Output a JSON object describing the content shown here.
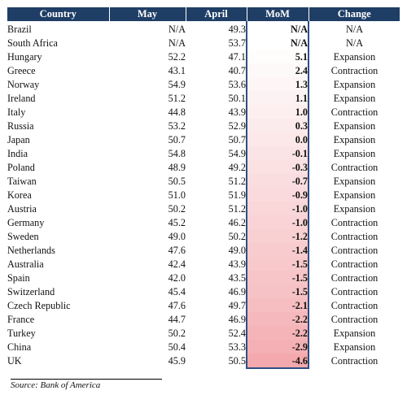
{
  "table": {
    "headers": [
      "Country",
      "May",
      "April",
      "MoM",
      "Change"
    ],
    "rows": [
      {
        "country": "Brazil",
        "may": "N/A",
        "april": "49.3",
        "mom": "N/A",
        "change": "N/A",
        "tint": 0.0
      },
      {
        "country": "South Africa",
        "may": "N/A",
        "april": "53.7",
        "mom": "N/A",
        "change": "N/A",
        "tint": 0.0
      },
      {
        "country": "Hungary",
        "may": "52.2",
        "april": "47.1",
        "mom": "5.1",
        "change": "Expansion",
        "tint": 0.04
      },
      {
        "country": "Greece",
        "may": "43.1",
        "april": "40.7",
        "mom": "2.4",
        "change": "Contraction",
        "tint": 0.07
      },
      {
        "country": "Norway",
        "may": "54.9",
        "april": "53.6",
        "mom": "1.3",
        "change": "Expansion",
        "tint": 0.11
      },
      {
        "country": "Ireland",
        "may": "51.2",
        "april": "50.1",
        "mom": "1.1",
        "change": "Expansion",
        "tint": 0.15
      },
      {
        "country": "Italy",
        "may": "44.8",
        "april": "43.9",
        "mom": "1.0",
        "change": "Contraction",
        "tint": 0.19
      },
      {
        "country": "Russia",
        "may": "53.2",
        "april": "52.9",
        "mom": "0.3",
        "change": "Expansion",
        "tint": 0.23
      },
      {
        "country": "Japan",
        "may": "50.7",
        "april": "50.7",
        "mom": "0.0",
        "change": "Expansion",
        "tint": 0.27
      },
      {
        "country": "India",
        "may": "54.8",
        "april": "54.9",
        "mom": "-0.1",
        "change": "Expansion",
        "tint": 0.31
      },
      {
        "country": "Poland",
        "may": "48.9",
        "april": "49.2",
        "mom": "-0.3",
        "change": "Contraction",
        "tint": 0.35
      },
      {
        "country": "Taiwan",
        "may": "50.5",
        "april": "51.2",
        "mom": "-0.7",
        "change": "Expansion",
        "tint": 0.39
      },
      {
        "country": "Korea",
        "may": "51.0",
        "april": "51.9",
        "mom": "-0.9",
        "change": "Expansion",
        "tint": 0.43
      },
      {
        "country": "Austria",
        "may": "50.2",
        "april": "51.2",
        "mom": "-1.0",
        "change": "Expansion",
        "tint": 0.47
      },
      {
        "country": "Germany",
        "may": "45.2",
        "april": "46.2",
        "mom": "-1.0",
        "change": "Contraction",
        "tint": 0.51
      },
      {
        "country": "Sweden",
        "may": "49.0",
        "april": "50.2",
        "mom": "-1.2",
        "change": "Contraction",
        "tint": 0.55
      },
      {
        "country": "Netherlands",
        "may": "47.6",
        "april": "49.0",
        "mom": "-1.4",
        "change": "Contraction",
        "tint": 0.59
      },
      {
        "country": "Australia",
        "may": "42.4",
        "april": "43.9",
        "mom": "-1.5",
        "change": "Contraction",
        "tint": 0.63
      },
      {
        "country": "Spain",
        "may": "42.0",
        "april": "43.5",
        "mom": "-1.5",
        "change": "Contraction",
        "tint": 0.67
      },
      {
        "country": "Switzerland",
        "may": "45.4",
        "april": "46.9",
        "mom": "-1.5",
        "change": "Contraction",
        "tint": 0.71
      },
      {
        "country": "Czech Republic",
        "may": "47.6",
        "april": "49.7",
        "mom": "-2.1",
        "change": "Contraction",
        "tint": 0.76
      },
      {
        "country": "France",
        "may": "44.7",
        "april": "46.9",
        "mom": "-2.2",
        "change": "Contraction",
        "tint": 0.81
      },
      {
        "country": "Turkey",
        "may": "50.2",
        "april": "52.4",
        "mom": "-2.2",
        "change": "Expansion",
        "tint": 0.86
      },
      {
        "country": "China",
        "may": "50.4",
        "april": "53.3",
        "mom": "-2.9",
        "change": "Expansion",
        "tint": 0.92
      },
      {
        "country": "UK",
        "may": "45.9",
        "april": "50.5",
        "mom": "-4.6",
        "change": "Contraction",
        "tint": 1.0
      }
    ]
  },
  "source": "Source: Bank of America",
  "colors": {
    "header_bg": "#1f3e66",
    "header_text": "#ffffff",
    "mom_border": "#2e4f82",
    "mom_tint_max": "#f3a9ad"
  }
}
